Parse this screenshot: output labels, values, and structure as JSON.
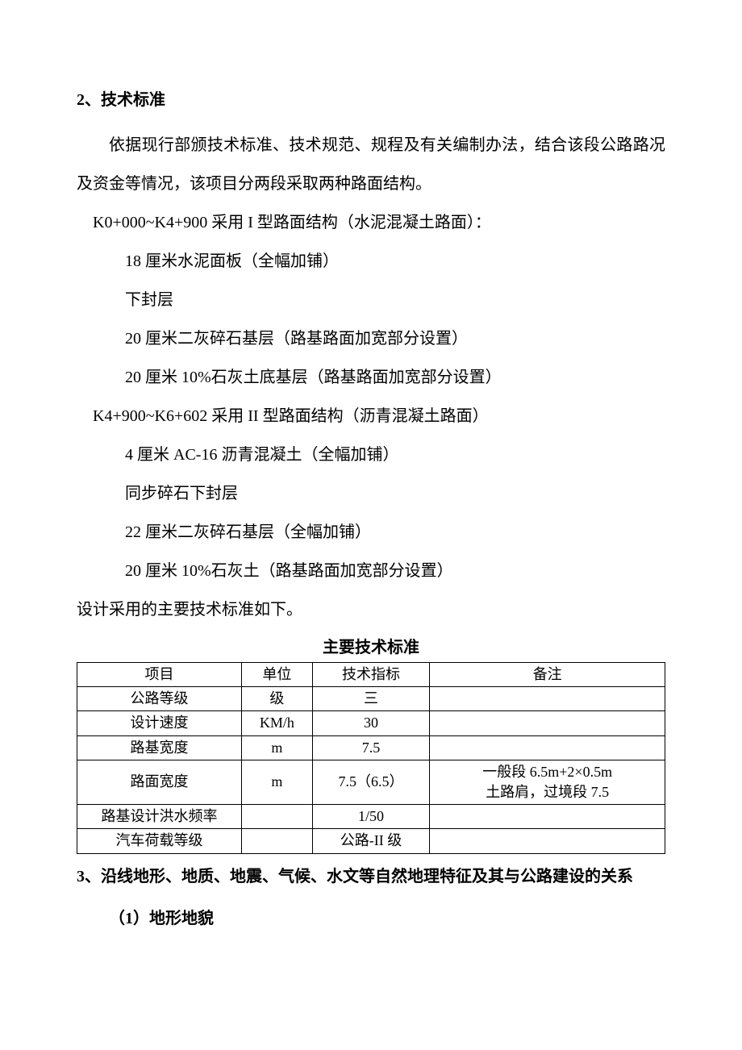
{
  "heading2": "2、技术标准",
  "para_intro": "依据现行部颁技术标准、技术规范、规程及有关编制办法，结合该段公路路况及资金等情况，该项目分两段采取两种路面结构。",
  "seg1_title": "K0+000~K4+900 采用 I 型路面结构（水泥混凝土路面）：",
  "seg1_items": [
    "18 厘米水泥面板（全幅加铺）",
    "下封层",
    "20 厘米二灰碎石基层（路基路面加宽部分设置）",
    "20 厘米 10%石灰土底基层（路基路面加宽部分设置）"
  ],
  "seg2_title": "K4+900~K6+602 采用 II 型路面结构（沥青混凝土路面）",
  "seg2_items": [
    "4 厘米 AC-16 沥青混凝土（全幅加铺）",
    "同步碎石下封层",
    "22 厘米二灰碎石基层（全幅加铺）",
    "20 厘米 10%石灰土（路基路面加宽部分设置）"
  ],
  "line_standards_intro": "设计采用的主要技术标准如下。",
  "table_title": "主要技术标准",
  "table": {
    "headers": [
      "项目",
      "单位",
      "技术指标",
      "备注"
    ],
    "rows": [
      {
        "proj": "公路等级",
        "unit": "级",
        "spec": "三",
        "note": ""
      },
      {
        "proj": "设计速度",
        "unit": "KM/h",
        "spec": "30",
        "note": ""
      },
      {
        "proj": "路基宽度",
        "unit": "m",
        "spec": "7.5",
        "note": ""
      },
      {
        "proj": "路面宽度",
        "unit": "m",
        "spec": "7.5（6.5）",
        "note": "一般段 6.5m+2×0.5m\n土路肩，过境段 7.5"
      },
      {
        "proj": "路基设计洪水频率",
        "unit": "",
        "spec": "1/50",
        "note": ""
      },
      {
        "proj": "汽车荷载等级",
        "unit": "",
        "spec": "公路-II 级",
        "note": ""
      }
    ]
  },
  "heading3": "3、沿线地形、地质、地震、气候、水文等自然地理特征及其与公路建设的关系",
  "sub3_1": "（1）地形地貌"
}
